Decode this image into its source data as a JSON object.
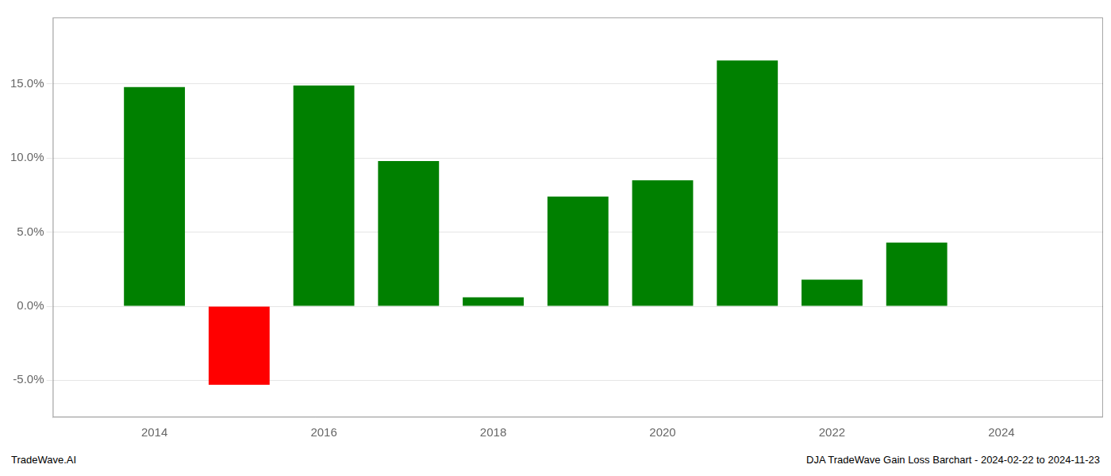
{
  "chart_data": {
    "type": "bar",
    "x": [
      2014,
      2015,
      2016,
      2017,
      2018,
      2019,
      2020,
      2021,
      2022,
      2023
    ],
    "values": [
      14.8,
      -5.3,
      14.9,
      9.8,
      0.6,
      7.4,
      8.5,
      16.6,
      1.8,
      4.3
    ],
    "colors": [
      "#008000",
      "#ff0000",
      "#008000",
      "#008000",
      "#008000",
      "#008000",
      "#008000",
      "#008000",
      "#008000",
      "#008000"
    ],
    "xlim": [
      2012.8,
      2025.2
    ],
    "xticks": [
      2014,
      2016,
      2018,
      2020,
      2022,
      2024
    ],
    "ylim": [
      -7.5,
      19.5
    ],
    "yticks": [
      {
        "value": -5.0,
        "label": "-5.0%"
      },
      {
        "value": 0.0,
        "label": "0.0%"
      },
      {
        "value": 5.0,
        "label": "5.0%"
      },
      {
        "value": 10.0,
        "label": "10.0%"
      },
      {
        "value": 15.0,
        "label": "15.0%"
      }
    ],
    "grid": true,
    "annotations": [
      "TradeWave.AI",
      "DJA TradeWave Gain Loss Barchart - 2024-02-22 to 2024-11-23"
    ]
  }
}
